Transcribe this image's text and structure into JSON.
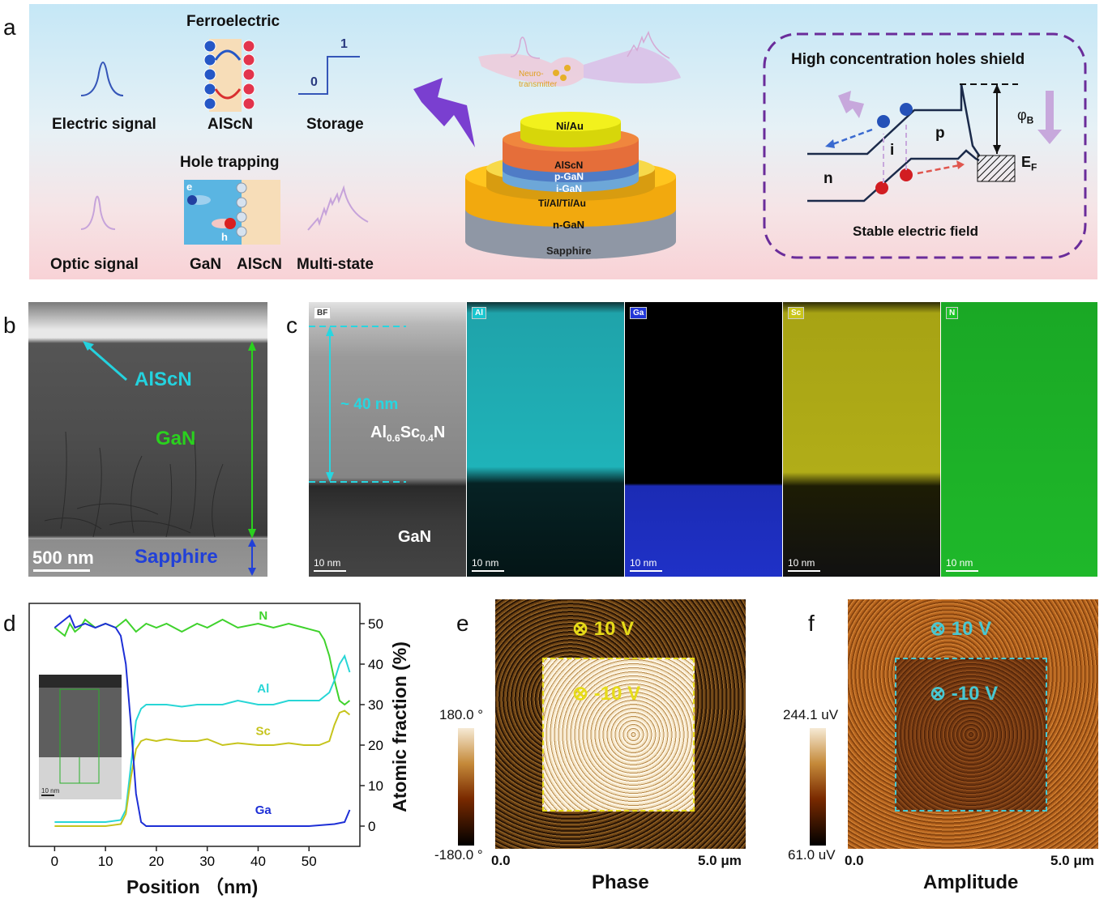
{
  "panel_labels": {
    "a": "a",
    "b": "b",
    "c": "c",
    "d": "d",
    "e": "e",
    "f": "f"
  },
  "panel_a": {
    "ferroelectric": "Ferroelectric",
    "electric_signal": "Electric signal",
    "alscn": "AlScN",
    "storage": "Storage",
    "storage_one": "1",
    "storage_zero": "0",
    "hole_trapping": "Hole trapping",
    "optic_signal": "Optic signal",
    "gan": "GaN",
    "alscn2": "AlScN",
    "multi_state": "Multi-state",
    "electron": "e",
    "hole": "h",
    "neuro1": "Neuro-",
    "neuro2": "transmitter",
    "layers": [
      "Ni/Au",
      "AlScN",
      "p-GaN",
      "i-GaN",
      "Ti/Al/Ti/Au",
      "n-GaN",
      "Sapphire"
    ],
    "band_title": "High concentration holes shield",
    "band_n": "n",
    "band_i": "i",
    "band_p": "p",
    "phi_b": "φ",
    "phi_sub": "B",
    "ef": "E",
    "ef_sub": "F",
    "stable": "Stable electric field"
  },
  "panel_b": {
    "alscn": "AlScN",
    "gan": "GaN",
    "sapphire": "Sapphire",
    "scalebar": "500 nm"
  },
  "panel_c": {
    "tags": [
      "BF",
      "Al",
      "Ga",
      "Sc",
      "N"
    ],
    "thickness": "~ 40 nm",
    "formula_al": "Al",
    "formula_al_sub": "0.6",
    "formula_sc": "Sc",
    "formula_sc_sub": "0.4",
    "formula_n": "N",
    "gan": "GaN",
    "scalebar": "10 nm",
    "colors": {
      "Al": "#19c6cf",
      "Ga": "#2136d8",
      "Sc": "#c9c51a",
      "N": "#1fc42a"
    }
  },
  "panel_e": {
    "top_label": "⊗ 10 V",
    "inner_label": "⊗ -10 V",
    "cb_max": "180.0 °",
    "cb_min": "-180.0 °",
    "x0": "0.0",
    "x1": "5.0 μm",
    "title": "Phase"
  },
  "panel_f": {
    "top_label": "⊗ 10 V",
    "inner_label": "⊗ -10 V",
    "cb_max": "244.1 uV",
    "cb_min": "61.0 uV",
    "x0": "0.0",
    "x1": "5.0 μm",
    "title": "Amplitude"
  },
  "chart_data": {
    "type": "line",
    "xlabel": "Position （nm)",
    "ylabel": "Atomic fraction (%)",
    "xlim": [
      -5,
      60
    ],
    "ylim": [
      -5,
      55
    ],
    "xticks": [
      0,
      10,
      20,
      30,
      40,
      50
    ],
    "yticks": [
      0,
      10,
      20,
      30,
      40,
      50
    ],
    "inset_scalebar": "10 nm",
    "series": [
      {
        "name": "N",
        "color": "#3fd22c",
        "label_at": [
          41,
          51
        ],
        "x": [
          0,
          2,
          3,
          4,
          5,
          6,
          8,
          10,
          12,
          14,
          16,
          18,
          20,
          22,
          25,
          28,
          30,
          33,
          36,
          40,
          43,
          46,
          49,
          52,
          53,
          54,
          55,
          56,
          57,
          58
        ],
        "y": [
          49,
          47,
          50,
          48,
          49,
          51,
          49,
          50,
          49,
          51,
          48,
          50,
          49,
          50,
          48,
          50,
          49,
          51,
          49,
          50,
          49,
          50,
          49,
          48,
          46,
          42,
          36,
          31,
          30,
          31
        ]
      },
      {
        "name": "Al",
        "color": "#28d6d6",
        "label_at": [
          41,
          33
        ],
        "x": [
          0,
          5,
          10,
          13,
          14,
          15,
          16,
          17,
          18,
          20,
          22,
          25,
          28,
          30,
          33,
          36,
          40,
          43,
          46,
          49,
          52,
          54,
          55,
          56,
          57,
          58
        ],
        "y": [
          1,
          1,
          1,
          1.5,
          4,
          15,
          26,
          29,
          30,
          30,
          30,
          29.5,
          30,
          30,
          30,
          31,
          30,
          30,
          31,
          31,
          31,
          33,
          36,
          40,
          42,
          38
        ]
      },
      {
        "name": "Sc",
        "color": "#c6c41c",
        "label_at": [
          41,
          22.5
        ],
        "x": [
          0,
          5,
          10,
          13,
          14,
          15,
          16,
          17,
          18,
          20,
          22,
          25,
          28,
          30,
          33,
          36,
          40,
          43,
          46,
          49,
          52,
          54,
          55,
          56,
          57,
          58
        ],
        "y": [
          0,
          0,
          0,
          0.5,
          3,
          12,
          19,
          21,
          21.5,
          21,
          21.5,
          21,
          21,
          21.5,
          20,
          20.5,
          20,
          20,
          20.5,
          20,
          20,
          21,
          25,
          28,
          28.5,
          27.5
        ]
      },
      {
        "name": "Ga",
        "color": "#1d2fd6",
        "label_at": [
          41,
          3
        ],
        "x": [
          0,
          2,
          3,
          4,
          6,
          8,
          10,
          12,
          13,
          14,
          15,
          16,
          17,
          18,
          20,
          25,
          30,
          35,
          40,
          45,
          50,
          55,
          57,
          58
        ],
        "y": [
          49,
          51,
          52,
          49,
          50,
          49,
          50,
          49,
          47,
          40,
          25,
          8,
          1,
          0,
          0,
          0,
          0,
          0,
          0,
          0,
          0,
          0.5,
          1,
          4
        ]
      }
    ]
  }
}
